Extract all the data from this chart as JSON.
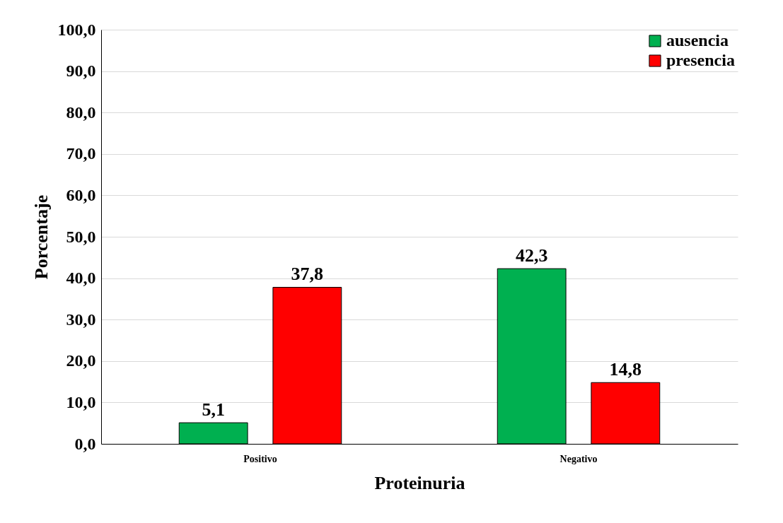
{
  "chart_data": {
    "type": "bar",
    "xlabel": "Proteinuria",
    "ylabel": "Porcentaje",
    "categories": [
      "Positivo",
      "Negativo"
    ],
    "series": [
      {
        "name": "ausencia",
        "color": "#00b050",
        "values": [
          5.1,
          42.3
        ],
        "value_labels": [
          "5,1",
          "42,3"
        ]
      },
      {
        "name": "presencia",
        "color": "#ff0000",
        "values": [
          37.8,
          14.8
        ],
        "value_labels": [
          "37,8",
          "14,8"
        ]
      }
    ],
    "ylim": [
      0,
      100
    ],
    "yticks": [
      {
        "value": 0,
        "label": "0,0"
      },
      {
        "value": 10,
        "label": "10,0"
      },
      {
        "value": 20,
        "label": "20,0"
      },
      {
        "value": 30,
        "label": "30,0"
      },
      {
        "value": 40,
        "label": "40,0"
      },
      {
        "value": 50,
        "label": "50,0"
      },
      {
        "value": 60,
        "label": "60,0"
      },
      {
        "value": 70,
        "label": "70,0"
      },
      {
        "value": 80,
        "label": "80,0"
      },
      {
        "value": 90,
        "label": "90,0"
      },
      {
        "value": 100,
        "label": "100,0"
      }
    ],
    "grid": "y",
    "legend": "top right"
  }
}
